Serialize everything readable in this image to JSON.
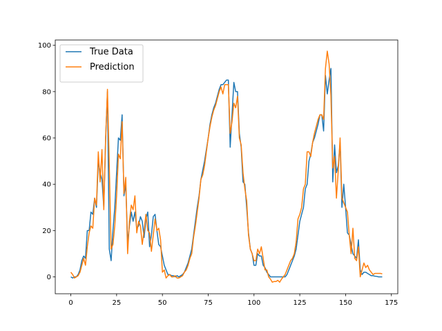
{
  "chart_data": {
    "type": "line",
    "x": [
      0,
      1,
      2,
      3,
      4,
      5,
      6,
      7,
      8,
      9,
      10,
      11,
      12,
      13,
      14,
      15,
      16,
      17,
      18,
      19,
      20,
      21,
      22,
      23,
      24,
      25,
      26,
      27,
      28,
      29,
      30,
      31,
      32,
      33,
      34,
      35,
      36,
      37,
      38,
      39,
      40,
      41,
      42,
      43,
      44,
      45,
      46,
      47,
      48,
      49,
      50,
      51,
      52,
      53,
      54,
      55,
      56,
      57,
      58,
      59,
      60,
      61,
      62,
      63,
      64,
      65,
      66,
      67,
      68,
      69,
      70,
      71,
      72,
      73,
      74,
      75,
      76,
      77,
      78,
      79,
      80,
      81,
      82,
      83,
      84,
      85,
      86,
      87,
      88,
      89,
      90,
      91,
      92,
      93,
      94,
      95,
      96,
      97,
      98,
      99,
      100,
      101,
      102,
      103,
      104,
      105,
      106,
      107,
      108,
      109,
      110,
      111,
      112,
      113,
      114,
      115,
      116,
      117,
      118,
      119,
      120,
      121,
      122,
      123,
      124,
      125,
      126,
      127,
      128,
      129,
      130,
      131,
      132,
      133,
      134,
      135,
      136,
      137,
      138,
      139,
      140,
      141,
      142,
      143,
      144,
      145,
      146,
      147,
      148,
      149,
      150,
      151,
      152,
      153,
      154,
      155,
      156,
      157,
      158,
      159,
      160,
      161,
      162,
      163,
      164,
      165,
      166,
      167,
      168,
      169,
      170
    ],
    "series": [
      {
        "name": "True Data",
        "color": "#1f77b4",
        "values": [
          0,
          -0.5,
          0,
          0,
          1,
          3,
          7,
          9,
          8,
          20,
          20,
          28,
          27,
          34,
          30,
          50,
          45,
          42,
          30,
          60,
          80,
          12,
          7,
          20,
          30,
          45,
          60,
          59,
          70,
          35,
          40,
          15,
          22,
          28,
          24,
          28,
          21,
          22,
          26,
          24,
          17,
          25,
          28,
          13,
          18,
          26,
          27,
          20,
          14,
          13,
          9,
          5,
          3,
          1,
          1,
          0.5,
          0.5,
          0,
          0.5,
          0,
          0.5,
          1,
          2,
          4,
          6,
          9,
          12,
          18,
          24,
          30,
          35,
          42,
          46,
          50,
          55,
          60,
          66,
          70,
          73,
          75,
          78,
          81,
          83,
          83,
          84,
          85,
          85,
          56,
          70,
          84,
          80,
          80,
          62,
          56,
          41,
          40,
          30,
          19,
          12,
          10,
          5,
          5,
          10,
          9,
          9,
          5,
          4,
          2,
          1,
          0,
          0,
          0,
          0,
          0,
          0,
          0,
          0,
          0,
          1,
          3,
          5,
          7,
          9,
          12,
          18,
          24,
          27,
          30,
          38,
          40,
          50,
          53,
          58,
          60,
          63,
          66,
          70,
          70,
          63,
          87,
          79,
          85,
          90,
          41,
          57,
          45,
          48,
          58,
          30,
          40,
          30,
          19,
          18,
          14,
          10,
          9,
          8,
          16,
          3,
          1,
          2,
          2,
          1.5,
          1,
          0.5,
          0.5,
          0.3,
          0.2,
          0,
          0,
          0
        ]
      },
      {
        "name": "Prediction",
        "color": "#ff7f0e",
        "values": [
          2,
          1,
          -0.5,
          0,
          0.5,
          2,
          5,
          8,
          5,
          13,
          19,
          22,
          21,
          34,
          31,
          54,
          41,
          55,
          29,
          59,
          81,
          48,
          12,
          14,
          22,
          35,
          53,
          51,
          67,
          36,
          43,
          10,
          24,
          31,
          29,
          35,
          19,
          24,
          22,
          14,
          20,
          27,
          20,
          19,
          11,
          18,
          25,
          20,
          21,
          16,
          2,
          3,
          -0.5,
          0.5,
          1,
          0,
          0,
          0.5,
          -0.5,
          -0.5,
          0,
          0.5,
          2,
          3,
          5,
          8,
          10,
          17,
          22,
          28,
          34,
          42,
          44,
          48,
          54,
          60,
          65,
          69,
          72,
          74,
          77,
          80,
          82,
          79,
          83,
          83,
          83,
          62,
          67,
          75,
          73,
          78,
          60,
          57,
          45,
          38,
          33,
          18,
          12,
          10,
          7,
          7,
          12,
          10,
          13,
          8,
          3,
          3,
          0,
          -1,
          -2.3,
          -2,
          -2,
          -1.5,
          -2.3,
          -1,
          0,
          1,
          3,
          5,
          7,
          8,
          10,
          15,
          25,
          27,
          30,
          38,
          40,
          54,
          54,
          52,
          58,
          62,
          65,
          68,
          70,
          70,
          68,
          90,
          97.5,
          92,
          78,
          47,
          52,
          34,
          46,
          60,
          34,
          32,
          30,
          28,
          18,
          10,
          21,
          8,
          7,
          13,
          0,
          3,
          6,
          4,
          5,
          3,
          2,
          1,
          1.5,
          1.5,
          1.5,
          1.5,
          1.3
        ]
      }
    ],
    "xlim": [
      -8.5,
      178.5
    ],
    "ylim": [
      -7.3,
      102.3
    ],
    "xticks": [
      0,
      25,
      50,
      75,
      100,
      125,
      150,
      175
    ],
    "yticks": [
      0,
      20,
      40,
      60,
      80,
      100
    ],
    "legend": "upper left"
  }
}
